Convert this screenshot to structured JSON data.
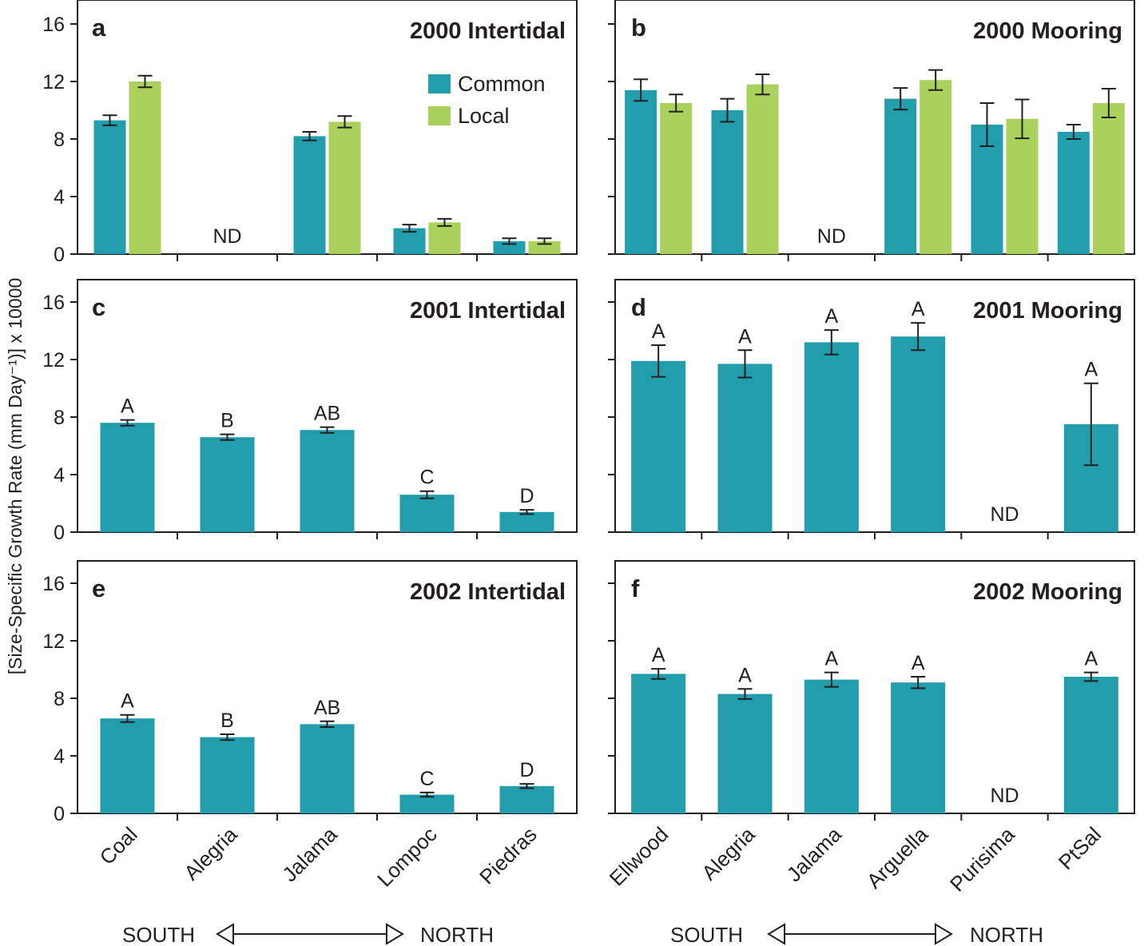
{
  "colors": {
    "common": "#229dab",
    "local": "#a9d15b",
    "ink": "#231f20"
  },
  "ylabel": "[Size-Specific Growth Rate (mm Day⁻¹)] x 10000",
  "direction": {
    "south": "SOUTH",
    "north": "NORTH"
  },
  "legend": {
    "common": "Common",
    "local": "Local"
  },
  "nd": "ND",
  "chart_data": [
    {
      "id": "a",
      "type": "bar",
      "letter": "a",
      "title": "2000 Intertidal",
      "categories": [
        "Coal",
        "Alegria",
        "Jalama",
        "Lompoc",
        "Piedras"
      ],
      "ylim": [
        0,
        16
      ],
      "yticks": [
        "0",
        "4",
        "8",
        "12",
        "16"
      ],
      "ytick_labels": true,
      "series": [
        {
          "name": "Common",
          "values": [
            9.3,
            null,
            8.2,
            1.8,
            0.9
          ],
          "errors": [
            0.35,
            null,
            0.3,
            0.25,
            0.2
          ]
        },
        {
          "name": "Local",
          "values": [
            12.0,
            null,
            9.2,
            2.2,
            0.9
          ],
          "errors": [
            0.4,
            null,
            0.4,
            0.25,
            0.2
          ]
        }
      ],
      "missing": [
        1
      ]
    },
    {
      "id": "b",
      "type": "bar",
      "letter": "b",
      "title": "2000 Mooring",
      "categories": [
        "Ellwood",
        "Alegria",
        "Jalama",
        "Arguella",
        "Purisima",
        "PtSal"
      ],
      "ylim": [
        0,
        16
      ],
      "yticks": [
        "0",
        "4",
        "8",
        "12",
        "16"
      ],
      "ytick_labels": false,
      "series": [
        {
          "name": "Common",
          "values": [
            11.4,
            10.0,
            null,
            10.8,
            9.0,
            8.5
          ],
          "errors": [
            0.75,
            0.8,
            null,
            0.75,
            1.5,
            0.5
          ]
        },
        {
          "name": "Local",
          "values": [
            10.5,
            11.8,
            null,
            12.1,
            9.4,
            10.5
          ],
          "errors": [
            0.6,
            0.7,
            null,
            0.7,
            1.35,
            1.0
          ]
        }
      ],
      "missing": [
        2
      ]
    },
    {
      "id": "c",
      "type": "bar",
      "letter": "c",
      "title": "2001 Intertidal",
      "categories": [
        "Coal",
        "Alegria",
        "Jalama",
        "Lompoc",
        "Piedras"
      ],
      "ylim": [
        0,
        16
      ],
      "yticks": [
        "0",
        "4",
        "8",
        "12",
        "16"
      ],
      "ytick_labels": true,
      "series": [
        {
          "name": "Common",
          "values": [
            7.6,
            6.6,
            7.1,
            2.6,
            1.4
          ],
          "errors": [
            0.2,
            0.2,
            0.2,
            0.25,
            0.15
          ],
          "labels": [
            "A",
            "B",
            "AB",
            "C",
            "D"
          ]
        }
      ],
      "missing": []
    },
    {
      "id": "d",
      "type": "bar",
      "letter": "d",
      "title": "2001 Mooring",
      "categories": [
        "Ellwood",
        "Alegria",
        "Jalama",
        "Arguella",
        "Purisima",
        "PtSal"
      ],
      "ylim": [
        0,
        16
      ],
      "yticks": [
        "0",
        "4",
        "8",
        "12",
        "16"
      ],
      "ytick_labels": false,
      "series": [
        {
          "name": "Common",
          "values": [
            11.9,
            11.7,
            13.2,
            13.6,
            null,
            7.5
          ],
          "errors": [
            1.1,
            0.95,
            0.85,
            0.95,
            null,
            2.85
          ],
          "labels": [
            "A",
            "A",
            "A",
            "A",
            null,
            "A"
          ]
        }
      ],
      "missing": [
        4
      ]
    },
    {
      "id": "e",
      "type": "bar",
      "letter": "e",
      "title": "2002 Intertidal",
      "categories": [
        "Coal",
        "Alegria",
        "Jalama",
        "Lompoc",
        "Piedras"
      ],
      "ylim": [
        0,
        16
      ],
      "yticks": [
        "0",
        "4",
        "8",
        "12",
        "16"
      ],
      "ytick_labels": true,
      "series": [
        {
          "name": "Common",
          "values": [
            6.6,
            5.3,
            6.2,
            1.3,
            1.9
          ],
          "errors": [
            0.25,
            0.2,
            0.2,
            0.15,
            0.15
          ],
          "labels": [
            "A",
            "B",
            "AB",
            "C",
            "D"
          ]
        }
      ],
      "missing": []
    },
    {
      "id": "f",
      "type": "bar",
      "letter": "f",
      "title": "2002 Mooring",
      "categories": [
        "Ellwood",
        "Alegria",
        "Jalama",
        "Arguella",
        "Purisima",
        "PtSal"
      ],
      "ylim": [
        0,
        16
      ],
      "yticks": [
        "0",
        "4",
        "8",
        "12",
        "16"
      ],
      "ytick_labels": false,
      "series": [
        {
          "name": "Common",
          "values": [
            9.7,
            8.3,
            9.3,
            9.1,
            null,
            9.5
          ],
          "errors": [
            0.35,
            0.35,
            0.5,
            0.4,
            null,
            0.3
          ],
          "labels": [
            "A",
            "A",
            "A",
            "A",
            null,
            "A"
          ]
        }
      ],
      "missing": [
        4
      ]
    }
  ]
}
